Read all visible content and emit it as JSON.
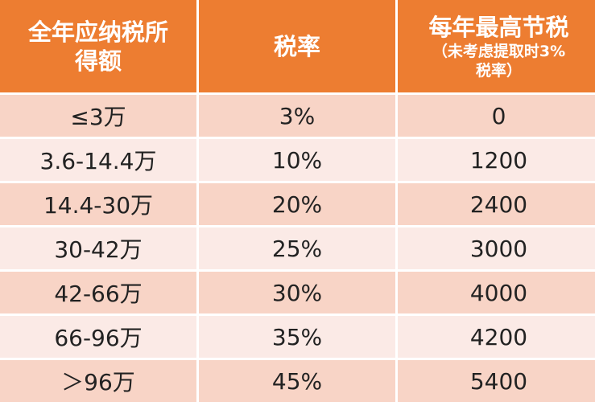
{
  "table": {
    "header": [
      {
        "lines": [
          "全年应纳税所",
          "得额"
        ]
      },
      {
        "lines": [
          "税率"
        ]
      },
      {
        "lines": [
          "每年最高节税"
        ],
        "note_lines": [
          "（未考虑提取时3%",
          "税率）"
        ]
      }
    ],
    "rows": [
      [
        "≤3万",
        "3%",
        "0"
      ],
      [
        "3.6-14.4万",
        "10%",
        "1200"
      ],
      [
        "14.4-30万",
        "20%",
        "2400"
      ],
      [
        "30-42万",
        "25%",
        "3000"
      ],
      [
        "42-66万",
        "30%",
        "4000"
      ],
      [
        "66-96万",
        "35%",
        "4200"
      ],
      [
        "＞96万",
        "45%",
        "5400"
      ]
    ]
  }
}
